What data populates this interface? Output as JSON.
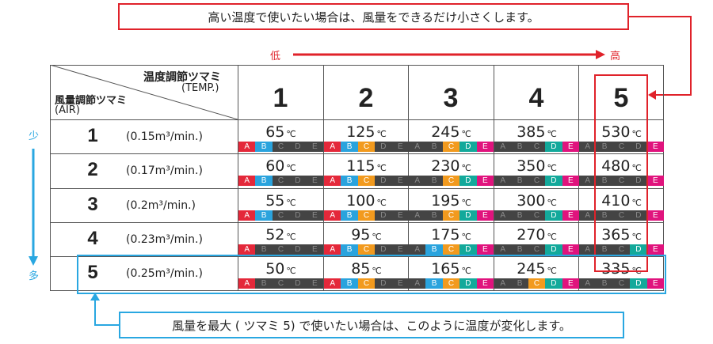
{
  "top_note": "高い温度で使いたい場合は、風量をできるだけ小さくします。",
  "bottom_note": "風量を最大 ( ツマミ 5) で使いたい場合は、このように温度が変化します。",
  "axis_low": "低",
  "axis_high": "高",
  "axis_few": "少",
  "axis_many": "多",
  "header_temp_knob": "温度調節ツマミ",
  "header_temp_en": "(TEMP.)",
  "header_air_knob": "風量調節ツマミ",
  "header_air_en": "(AIR)",
  "temp_unit": "℃",
  "columns": [
    "1",
    "2",
    "3",
    "4",
    "5"
  ],
  "letters": [
    "A",
    "B",
    "C",
    "D",
    "E"
  ],
  "colors": {
    "A": "#e4283a",
    "B": "#2aa3dd",
    "C": "#f29a1e",
    "D": "#13a99b",
    "E": "#e0137d"
  },
  "rows": [
    {
      "air_level": "1",
      "airflow": "(0.15m³/min.)",
      "cells": [
        {
          "temp": "65",
          "active": [
            "A",
            "B"
          ]
        },
        {
          "temp": "125",
          "active": [
            "A",
            "B",
            "C"
          ]
        },
        {
          "temp": "245",
          "active": [
            "C",
            "D",
            "E"
          ]
        },
        {
          "temp": "385",
          "active": [
            "D",
            "E"
          ]
        },
        {
          "temp": "530",
          "active": [
            "E"
          ]
        }
      ]
    },
    {
      "air_level": "2",
      "airflow": "(0.17m³/min.)",
      "cells": [
        {
          "temp": "60",
          "active": [
            "A",
            "B"
          ]
        },
        {
          "temp": "115",
          "active": [
            "A",
            "B",
            "C"
          ]
        },
        {
          "temp": "230",
          "active": [
            "C",
            "D",
            "E"
          ]
        },
        {
          "temp": "350",
          "active": [
            "D",
            "E"
          ]
        },
        {
          "temp": "480",
          "active": [
            "E"
          ]
        }
      ]
    },
    {
      "air_level": "3",
      "airflow": "(0.2m³/min.)",
      "cells": [
        {
          "temp": "55",
          "active": [
            "A",
            "B"
          ]
        },
        {
          "temp": "100",
          "active": [
            "A",
            "B",
            "C"
          ]
        },
        {
          "temp": "195",
          "active": [
            "C",
            "D",
            "E"
          ]
        },
        {
          "temp": "300",
          "active": [
            "D",
            "E"
          ]
        },
        {
          "temp": "410",
          "active": [
            "E"
          ]
        }
      ]
    },
    {
      "air_level": "4",
      "airflow": "(0.23m³/min.)",
      "cells": [
        {
          "temp": "52",
          "active": [
            "A"
          ]
        },
        {
          "temp": "95",
          "active": [
            "A",
            "B",
            "C"
          ]
        },
        {
          "temp": "175",
          "active": [
            "B",
            "C",
            "D",
            "E"
          ]
        },
        {
          "temp": "270",
          "active": [
            "D",
            "E"
          ]
        },
        {
          "temp": "365",
          "active": [
            "D",
            "E"
          ]
        }
      ]
    },
    {
      "air_level": "5",
      "airflow": "(0.25m³/min.)",
      "cells": [
        {
          "temp": "50",
          "active": [
            "A"
          ]
        },
        {
          "temp": "85",
          "active": [
            "A",
            "B",
            "C"
          ]
        },
        {
          "temp": "165",
          "active": [
            "B",
            "C",
            "D",
            "E"
          ]
        },
        {
          "temp": "245",
          "active": [
            "C",
            "D",
            "E"
          ]
        },
        {
          "temp": "335",
          "active": [
            "D",
            "E"
          ]
        }
      ]
    }
  ]
}
